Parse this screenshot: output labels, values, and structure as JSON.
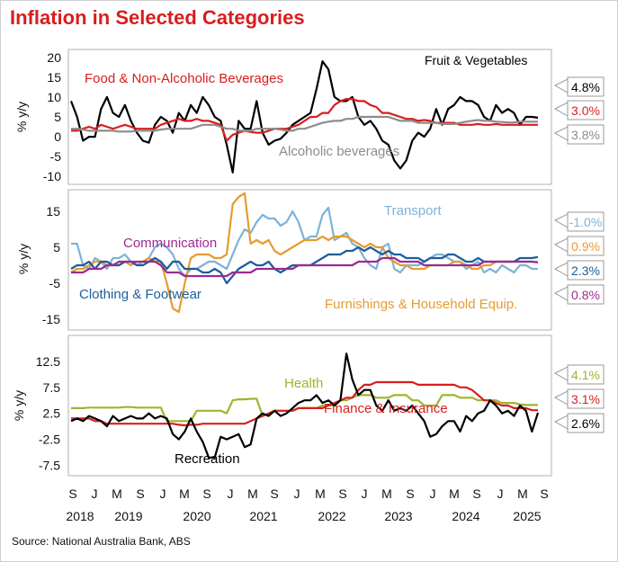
{
  "title": "Inflation in Selected Categories",
  "source": "Source: National Australia Bank, ABS",
  "x_axis": {
    "month_ticks": [
      "S",
      "J",
      "M",
      "S",
      "J",
      "M",
      "S",
      "J",
      "M",
      "S",
      "J",
      "M",
      "S",
      "J",
      "M",
      "S",
      "J",
      "M",
      "S",
      "J",
      "M",
      "S"
    ],
    "year_labels": [
      "2018",
      "2019",
      "2020",
      "2021",
      "2022",
      "2023",
      "2024",
      "2025"
    ]
  },
  "chart_data": [
    {
      "type": "line",
      "ylabel": "% y/y",
      "ylim": [
        -12,
        22
      ],
      "yticks": [
        20,
        15,
        10,
        5,
        0,
        -5,
        -10
      ],
      "x_start": "2018-09",
      "series": [
        {
          "name": "Fruit & Vegetables",
          "color": "#000000",
          "final_label": "4.8%",
          "values": [
            9,
            5,
            -1,
            0,
            0,
            7,
            10,
            6,
            5,
            8,
            4,
            1,
            -1,
            -1.5,
            3,
            5,
            4,
            1,
            6,
            4,
            8,
            6,
            10,
            8,
            5,
            4,
            -2,
            -9,
            4,
            2,
            2,
            9,
            1,
            -2,
            -1,
            -0.5,
            1,
            3,
            4,
            5,
            6,
            12,
            19,
            17,
            10,
            9,
            9,
            10,
            5,
            3,
            4,
            2,
            -1,
            -2,
            -6,
            -8,
            -6,
            -1,
            1,
            0,
            2,
            7,
            3,
            7,
            8,
            10,
            9,
            9,
            8,
            5,
            4,
            8,
            6,
            7,
            6,
            3,
            5,
            5,
            4.8
          ]
        },
        {
          "name": "Food & Non-Alcoholic Beverages",
          "color": "#d81e1e",
          "final_label": "3.0%",
          "values": [
            1.5,
            1.5,
            2,
            2.5,
            2,
            3,
            2.5,
            2,
            2.5,
            3,
            2.5,
            2,
            2,
            2,
            2,
            3,
            3.5,
            4,
            4.5,
            4,
            4,
            4.5,
            4,
            4,
            3.5,
            3,
            -1,
            0.5,
            1,
            1.5,
            1.2,
            1,
            1,
            1.5,
            2,
            2,
            2,
            2.5,
            3,
            4,
            5,
            5,
            6,
            6,
            8,
            9,
            9.5,
            9.5,
            9,
            9,
            8,
            7.5,
            6,
            6,
            5.5,
            5,
            4.5,
            4.5,
            4,
            4.2,
            4,
            3.5,
            3.5,
            3.5,
            3.5,
            3,
            3,
            3,
            3.2,
            3,
            3,
            3.2,
            3,
            3,
            3,
            3,
            3,
            3,
            3
          ]
        },
        {
          "name": "Alcoholic beverages",
          "color": "#8c8c8c",
          "final_label": "3.8%",
          "values": [
            2,
            2,
            1.8,
            1.5,
            1.5,
            1.5,
            1.5,
            1.5,
            1.3,
            1.3,
            1.3,
            1.5,
            1.5,
            1.5,
            1.5,
            1.8,
            2,
            2,
            2,
            2,
            2,
            2.5,
            3,
            3,
            3,
            2.5,
            2,
            2,
            1.5,
            1.5,
            1.5,
            2,
            2,
            2,
            2,
            1.8,
            1.5,
            1.5,
            2,
            2,
            2.5,
            3,
            3.5,
            3.8,
            4,
            4,
            4.5,
            4.5,
            5,
            5,
            5,
            5,
            5,
            5,
            4.5,
            4,
            4,
            4,
            3.5,
            3.5,
            3.5,
            3.5,
            3.2,
            3.2,
            3.2,
            3.5,
            3.8,
            4,
            4.2,
            4,
            4,
            3.8,
            3.7,
            3.6,
            3.6,
            3.8,
            3.8,
            3.8,
            3.8
          ]
        }
      ],
      "annotations": [
        {
          "text": "Food & Non-Alcoholic Beverages",
          "color": "#d81e1e"
        },
        {
          "text": "Fruit & Vegetables",
          "color": "#000000"
        },
        {
          "text": "Alcoholic beverages",
          "color": "#8c8c8c"
        }
      ]
    },
    {
      "type": "line",
      "ylabel": "% y/y",
      "ylim": [
        -18,
        21
      ],
      "yticks": [
        15,
        5,
        -5,
        -15
      ],
      "x_start": "2018-09",
      "series": [
        {
          "name": "Transport",
          "color": "#7fb2d6",
          "final_label": "-1.0%",
          "values": [
            6,
            6,
            0,
            -1,
            2,
            1,
            -1,
            2,
            2,
            3,
            1,
            0,
            1,
            2,
            5,
            6,
            5,
            3,
            -1,
            -3,
            -1,
            -1,
            0,
            1,
            1,
            0,
            -1,
            3,
            7,
            10,
            9,
            12,
            14,
            13,
            13,
            11,
            12,
            15,
            12,
            7,
            8,
            8,
            14,
            16,
            7,
            8,
            9,
            6,
            5,
            2,
            0,
            -1,
            5,
            6,
            -1,
            -2,
            0,
            0,
            0,
            1,
            2,
            3,
            3,
            2,
            1,
            1,
            -1,
            0,
            1,
            -2,
            -1,
            -2,
            0,
            -1,
            -2,
            0,
            0,
            -1,
            -1
          ]
        },
        {
          "name": "Furnishings & Household Equip.",
          "color": "#e89b2f",
          "final_label": "0.9%",
          "values": [
            -2,
            -1,
            -1,
            0,
            1,
            1,
            0,
            0,
            0,
            1,
            0,
            1,
            1,
            2,
            1,
            1,
            -5,
            -12,
            -13,
            -5,
            2,
            3,
            3,
            3,
            2,
            2,
            3,
            17,
            19,
            20,
            6,
            7,
            6,
            7,
            4,
            3,
            4,
            5,
            6,
            7,
            7,
            7,
            8,
            7,
            8,
            8,
            8,
            7,
            6,
            5,
            6,
            5,
            5,
            2,
            1,
            0,
            0,
            -1,
            -1,
            -1,
            0,
            0,
            0,
            0,
            1,
            1,
            0,
            -1,
            -1,
            0,
            0,
            1,
            1,
            1,
            1,
            1,
            1,
            1,
            0.9
          ]
        },
        {
          "name": "Clothing & Footwear",
          "color": "#1b5e9b",
          "final_label": "2.3%",
          "values": [
            -1,
            0,
            0,
            1,
            -1,
            1,
            1,
            0,
            0,
            1,
            1,
            0,
            0,
            1,
            2,
            1,
            -1,
            1,
            1,
            -1,
            -1,
            -1,
            -2,
            -2,
            -1,
            -2,
            -5,
            -3,
            -1,
            0,
            1,
            0,
            0,
            1,
            -1,
            -2,
            -1,
            0,
            0,
            0,
            0,
            1,
            2,
            3,
            3,
            3,
            4,
            4,
            5,
            4,
            5,
            4,
            3,
            4,
            3,
            3,
            2,
            2,
            2,
            1,
            2,
            2,
            2,
            3,
            3,
            2,
            1,
            1,
            2,
            1,
            1,
            1,
            1,
            1,
            1,
            2,
            2,
            2,
            2.3
          ]
        },
        {
          "name": "Communication",
          "color": "#9b2b92",
          "final_label": "0.8%",
          "values": [
            -2,
            -2,
            -2,
            -1,
            -1,
            -1,
            0,
            0,
            1,
            1,
            1,
            1,
            1,
            1,
            1,
            0,
            -2,
            -2,
            -2,
            -3,
            -3,
            -3,
            -3,
            -3,
            -3,
            -3,
            -3,
            -2,
            -2,
            -2,
            -2,
            -1,
            -1,
            -1,
            -1,
            -1,
            -1,
            -1,
            0,
            0,
            0,
            0,
            0,
            0,
            0,
            0,
            0,
            0,
            1,
            1,
            1,
            1,
            2,
            2,
            2,
            1,
            1,
            1,
            1,
            0,
            0,
            0,
            0,
            0,
            0,
            0,
            0,
            0,
            0,
            1,
            1,
            1,
            1,
            1,
            1,
            1,
            1,
            1,
            0.8
          ]
        }
      ],
      "annotations": [
        {
          "text": "Transport",
          "color": "#7fb2d6"
        },
        {
          "text": "Communication",
          "color": "#9b2b92"
        },
        {
          "text": "Clothing & Footwear",
          "color": "#1b5e9b"
        },
        {
          "text": "Furnishings & Household Equip.",
          "color": "#e89b2f"
        }
      ]
    },
    {
      "type": "line",
      "ylabel": "% y/y",
      "ylim": [
        -9.5,
        17.5
      ],
      "yticks": [
        12.5,
        7.5,
        2.5,
        -2.5,
        -7.5
      ],
      "x_start": "2018-09",
      "series": [
        {
          "name": "Health",
          "color": "#a0b42c",
          "final_label": "4.1%",
          "values": [
            3.5,
            3.5,
            3.5,
            3.6,
            3.6,
            3.6,
            3.6,
            3.6,
            3.6,
            3.7,
            3.7,
            3.6,
            3.6,
            3.6,
            3.6,
            3.6,
            1,
            1,
            1,
            1,
            1,
            3,
            3,
            3,
            3,
            3,
            2.5,
            5,
            5.2,
            5.2,
            5.3,
            5.3,
            2,
            2.5,
            3,
            3,
            3,
            3,
            3.5,
            3.5,
            3.5,
            3.5,
            4,
            4,
            4,
            5,
            5,
            5.5,
            6,
            6,
            6,
            5.5,
            5.5,
            5.5,
            6,
            6,
            6,
            5,
            5,
            4,
            4,
            4,
            6,
            6,
            6,
            5.5,
            5.5,
            5.5,
            5,
            5,
            5,
            5,
            4.5,
            4.5,
            4.5,
            4.2,
            4.1,
            4.1,
            4.1
          ]
        },
        {
          "name": "Finance & Insurance",
          "color": "#d81e1e",
          "final_label": "3.1%",
          "values": [
            1.5,
            1.5,
            1.5,
            1.5,
            1,
            1,
            0.5,
            0.5,
            0.5,
            0.5,
            0.5,
            0.5,
            0.5,
            0.5,
            0.5,
            0.5,
            0.5,
            0.5,
            0.3,
            0.2,
            0.3,
            0.3,
            0.5,
            0.5,
            0.5,
            0.5,
            0.5,
            0.5,
            0.5,
            0.5,
            1,
            1.5,
            2,
            2.5,
            3,
            3,
            3,
            3,
            3.5,
            3.5,
            3.5,
            3.5,
            3.5,
            4,
            4.5,
            5,
            5.5,
            5.5,
            7,
            8,
            8,
            8.5,
            8.5,
            8.5,
            8.5,
            8.5,
            8.5,
            8.5,
            8,
            8,
            8,
            8,
            8,
            8,
            8,
            7.5,
            7.5,
            7,
            6,
            5,
            5,
            4.5,
            4,
            4,
            3.5,
            3.5,
            3.5,
            3.1,
            3.1
          ]
        },
        {
          "name": "Recreation",
          "color": "#000000",
          "final_label": "2.6%",
          "values": [
            1,
            1.5,
            1,
            2,
            1.5,
            1,
            0,
            2,
            1,
            1.5,
            2,
            1.5,
            1.5,
            2.5,
            1.5,
            2,
            1.5,
            -1.5,
            -2.5,
            -1,
            1.5,
            -1,
            -3,
            -6,
            -6,
            -2,
            -2.5,
            -2,
            -1.5,
            -4,
            -3.5,
            1.5,
            2.5,
            2,
            3,
            2,
            2.5,
            3.5,
            4.5,
            5,
            5,
            6,
            4.5,
            5,
            4,
            5,
            14,
            9,
            6,
            7,
            7,
            4,
            3,
            5,
            3,
            3.5,
            3,
            4,
            2.5,
            1,
            -2,
            -1.5,
            0,
            1,
            1,
            -1,
            2,
            1,
            2.5,
            3,
            5,
            4,
            2.5,
            3,
            2,
            4,
            3,
            -1,
            2.6
          ]
        }
      ],
      "annotations": [
        {
          "text": "Health",
          "color": "#a0b42c"
        },
        {
          "text": "Finance & Insurance",
          "color": "#d81e1e"
        },
        {
          "text": "Recreation",
          "color": "#000000"
        }
      ]
    }
  ]
}
